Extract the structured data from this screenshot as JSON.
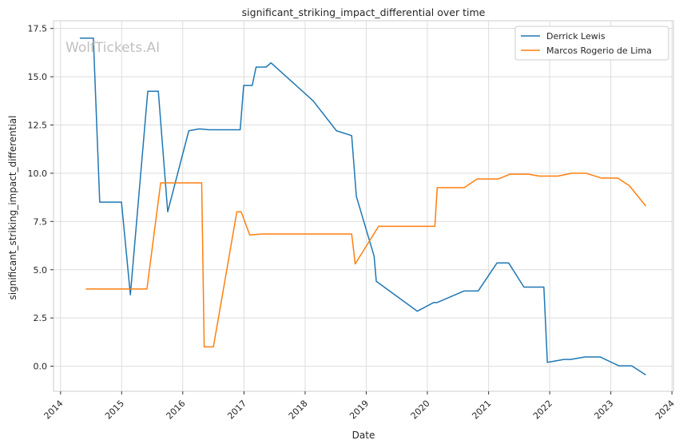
{
  "watermark": "WolfTickets.AI",
  "chart_data": {
    "type": "line",
    "title": "significant_striking_impact_differential over time",
    "xlabel": "Date",
    "ylabel": "significant_striking_impact_differential",
    "xlim": [
      "2013-11-20",
      "2024-01-10"
    ],
    "ylim": [
      -1.3,
      17.9
    ],
    "x_ticks": [
      "2014",
      "2015",
      "2016",
      "2017",
      "2018",
      "2019",
      "2020",
      "2021",
      "2022",
      "2023",
      "2024"
    ],
    "y_ticks": [
      "0.0",
      "2.5",
      "5.0",
      "7.5",
      "10.0",
      "12.5",
      "15.0",
      "17.5"
    ],
    "y_tick_values": [
      0,
      2.5,
      5,
      7.5,
      10,
      12.5,
      15,
      17.5
    ],
    "grid": true,
    "legend_position": "top-right",
    "series": [
      {
        "name": "Derrick Lewis",
        "color": "#1f77b4",
        "points": [
          [
            "2014-04-26",
            17.0
          ],
          [
            "2014-07-16",
            17.0
          ],
          [
            "2014-08-23",
            8.5
          ],
          [
            "2014-12-31",
            8.5
          ],
          [
            "2015-02-22",
            3.7
          ],
          [
            "2015-06-06",
            14.25
          ],
          [
            "2015-08-08",
            14.25
          ],
          [
            "2015-10-03",
            8.0
          ],
          [
            "2016-02-06",
            12.2
          ],
          [
            "2016-04-10",
            12.3
          ],
          [
            "2016-06-04",
            12.25
          ],
          [
            "2016-12-09",
            12.25
          ],
          [
            "2016-12-30",
            14.55
          ],
          [
            "2017-02-19",
            14.55
          ],
          [
            "2017-03-14",
            15.5
          ],
          [
            "2017-05-13",
            15.5
          ],
          [
            "2017-06-11",
            15.72
          ],
          [
            "2018-02-18",
            13.75
          ],
          [
            "2018-07-07",
            12.2
          ],
          [
            "2018-10-06",
            11.95
          ],
          [
            "2018-11-03",
            8.8
          ],
          [
            "2019-02-17",
            5.7
          ],
          [
            "2019-03-02",
            4.4
          ],
          [
            "2019-11-02",
            2.85
          ],
          [
            "2020-02-08",
            3.3
          ],
          [
            "2020-02-29",
            3.3
          ],
          [
            "2020-08-08",
            3.9
          ],
          [
            "2020-10-31",
            3.9
          ],
          [
            "2021-02-20",
            5.35
          ],
          [
            "2021-05-01",
            5.35
          ],
          [
            "2021-07-31",
            4.1
          ],
          [
            "2021-11-27",
            4.1
          ],
          [
            "2021-12-18",
            0.2
          ],
          [
            "2022-03-26",
            0.35
          ],
          [
            "2022-05-07",
            0.35
          ],
          [
            "2022-07-30",
            0.48
          ],
          [
            "2022-10-29",
            0.48
          ],
          [
            "2023-02-18",
            0.02
          ],
          [
            "2023-05-06",
            0.02
          ],
          [
            "2023-07-29",
            -0.45
          ]
        ]
      },
      {
        "name": "Marcos Rogerio de Lima",
        "color": "#ff7f0e",
        "points": [
          [
            "2014-06-01",
            4.0
          ],
          [
            "2015-06-01",
            4.0
          ],
          [
            "2015-08-22",
            9.5
          ],
          [
            "2016-04-23",
            9.5
          ],
          [
            "2016-05-08",
            1.0
          ],
          [
            "2016-07-02",
            1.0
          ],
          [
            "2016-11-19",
            8.0
          ],
          [
            "2016-12-15",
            8.0
          ],
          [
            "2017-02-04",
            6.8
          ],
          [
            "2017-04-22",
            6.85
          ],
          [
            "2018-10-06",
            6.85
          ],
          [
            "2018-10-27",
            5.3
          ],
          [
            "2019-03-16",
            7.25
          ],
          [
            "2020-02-15",
            7.25
          ],
          [
            "2020-02-29",
            9.25
          ],
          [
            "2020-08-08",
            9.25
          ],
          [
            "2020-10-24",
            9.7
          ],
          [
            "2021-02-27",
            9.7
          ],
          [
            "2021-05-08",
            9.95
          ],
          [
            "2021-08-28",
            9.95
          ],
          [
            "2021-10-30",
            9.85
          ],
          [
            "2022-02-19",
            9.85
          ],
          [
            "2022-05-14",
            10.0
          ],
          [
            "2022-08-06",
            10.0
          ],
          [
            "2022-11-05",
            9.75
          ],
          [
            "2023-02-11",
            9.75
          ],
          [
            "2023-04-22",
            9.35
          ],
          [
            "2023-07-29",
            8.3
          ]
        ]
      }
    ]
  }
}
